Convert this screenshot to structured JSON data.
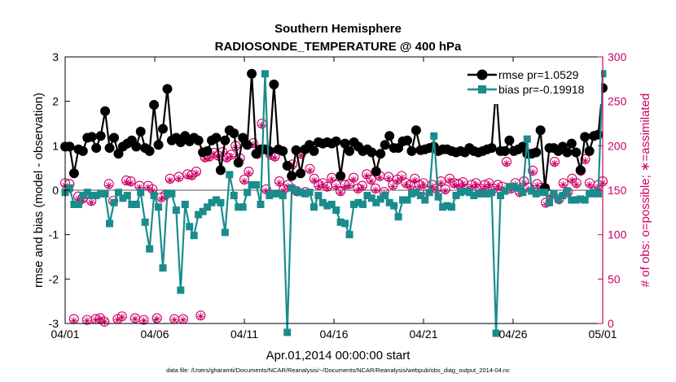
{
  "chart_data": {
    "type": "line",
    "title": "Southern Hemisphere",
    "subtitle": "RADIOSONDE_TEMPERATURE @ 400 hPa",
    "xlabel": "Apr.01,2014 00:00:00 start",
    "ylabel": "rmse and bias (model - observation)",
    "y2label": "# of obs: o=possible; ∗=assimilated",
    "footnote": "data file: /Users/gharamti/Documents/NCAR/Reanalysis/~/Documents/NCAR/Reanalysis/webpub/obs_diag_output_2014-04.nc",
    "xlim": [
      0,
      30
    ],
    "ylim": [
      -3,
      3
    ],
    "y2lim": [
      0,
      300
    ],
    "xticks": [
      0,
      5,
      10,
      15,
      20,
      25,
      30
    ],
    "xtick_labels": [
      "04/01",
      "04/06",
      "04/11",
      "04/16",
      "04/21",
      "04/26",
      "05/01"
    ],
    "yticks": [
      -3,
      -2,
      -1,
      0,
      1,
      2,
      3
    ],
    "ytick_labels": [
      "-3",
      "-2",
      "-1",
      "0",
      "1",
      "2",
      "3"
    ],
    "y2ticks": [
      0,
      50,
      100,
      150,
      200,
      250,
      300
    ],
    "y2tick_labels": [
      "0",
      "50",
      "100",
      "150",
      "200",
      "250",
      "300"
    ],
    "legend_position": "top-right",
    "colors": {
      "rmse": "#000000",
      "bias": "#1a8c8c",
      "obs": "#cc0066",
      "zero_line": "#aaaaaa"
    },
    "series": [
      {
        "name": "rmse pr=1.0529",
        "axis": "left",
        "values": [
          0.98,
          0.98,
          0.38,
          0.92,
          0.88,
          1.18,
          1.2,
          0.95,
          1.22,
          1.78,
          0.95,
          1.18,
          0.82,
          0.98,
          1.05,
          1.12,
          0.98,
          1.32,
          0.95,
          0.88,
          1.92,
          1.02,
          1.38,
          2.28,
          1.12,
          1.18,
          1.08,
          1.22,
          1.1,
          1.18,
          1.12,
          0.85,
          0.88,
          1.12,
          1.18,
          0.45,
          1.12,
          1.35,
          1.28,
          0.62,
          1.18,
          1.02,
          2.62,
          0.82,
          0.92,
          0.92,
          0.88,
          2.38,
          0.92,
          0.88,
          0.55,
          0.32,
          0.9,
          0.38,
          0.92,
          1.02,
          0.88,
          1.08,
          1.05,
          1.08,
          1.05,
          1.1,
          0.32,
          1.05,
          0.88,
          1.08,
          0.98,
          0.88,
          0.92,
          0.85,
          0.42,
          0.82,
          1.02,
          1.22,
          0.95,
          0.95,
          1.1,
          1.12,
          0.88,
          1.35,
          0.9,
          0.92,
          0.95,
          0.98,
          0.88,
          0.92,
          0.92,
          0.88,
          0.85,
          0.88,
          0.85,
          0.95,
          0.88,
          0.85,
          0.88,
          0.92,
          0.95,
          2.3,
          0.88,
          0.88,
          1.12,
          0.88,
          0.92,
          0.98,
          0.82,
          0.82,
          0.85,
          1.35,
          0.05,
          0.95,
          0.95,
          0.88,
          0.98,
          0.85,
          1.05,
          0.85,
          0.45,
          1.2,
          0.88,
          1.22,
          1.25,
          2.3
        ]
      },
      {
        "name": "bias pr=-0.19918",
        "axis": "left",
        "values": [
          -0.05,
          0.05,
          -0.32,
          -0.32,
          -0.12,
          -0.05,
          -0.12,
          -0.12,
          -0.08,
          -0.08,
          -0.75,
          -0.28,
          -0.05,
          -0.18,
          -0.12,
          -0.32,
          -0.32,
          -0.05,
          -0.72,
          -1.32,
          -0.12,
          -0.38,
          -1.75,
          -0.08,
          -0.08,
          -0.45,
          -2.25,
          -0.32,
          -0.82,
          -1.02,
          -0.55,
          -0.48,
          -0.38,
          -0.28,
          -0.22,
          -0.28,
          -0.95,
          0.35,
          -0.12,
          -0.38,
          -0.38,
          -0.05,
          0.12,
          0.12,
          -0.32,
          2.62,
          -0.12,
          -0.08,
          -0.08,
          -0.12,
          -3.2,
          0.05,
          -0.02,
          -0.05,
          -0.08,
          -0.05,
          -0.38,
          -0.12,
          -0.28,
          -0.35,
          -0.32,
          -0.45,
          -0.72,
          -0.75,
          -1.0,
          -0.32,
          -0.28,
          -0.32,
          -0.12,
          -0.18,
          -0.28,
          -0.2,
          -0.12,
          -0.28,
          -0.35,
          -0.6,
          -0.22,
          -0.22,
          -0.08,
          -0.05,
          -0.12,
          -0.22,
          -0.05,
          1.22,
          -0.15,
          -0.38,
          -0.35,
          -0.38,
          -0.12,
          -0.05,
          -0.02,
          -0.05,
          -0.12,
          -0.08,
          -0.08,
          -0.08,
          -0.05,
          -3.22,
          -0.12,
          -0.02,
          0.08,
          0.08,
          0.05,
          -0.05,
          1.15,
          -0.02,
          -0.08,
          -0.05,
          -0.05,
          -0.28,
          -0.08,
          -0.2,
          -0.12,
          -0.02,
          -0.22,
          -0.22,
          -0.2,
          -0.22,
          -0.08,
          -0.05,
          -0.08,
          2.62
        ]
      },
      {
        "name": "possible",
        "axis": "right",
        "values": [
          158,
          157,
          5,
          143,
          141,
          4,
          138,
          5,
          6,
          2,
          157,
          138,
          5,
          8,
          161,
          160,
          6,
          155,
          4,
          155,
          151,
          6,
          142,
          145,
          163,
          5,
          165,
          5,
          168,
          167,
          171,
          9,
          187,
          188,
          192,
          189,
          193,
          187,
          190,
          200,
          186,
          162,
          171,
          203,
          191,
          225,
          151,
          190,
          188,
          160,
          151,
          156,
          179,
          149,
          191,
          148,
          174,
          163,
          156,
          158,
          154,
          164,
          156,
          149,
          156,
          157,
          164,
          152,
          155,
          168,
          162,
          152,
          166,
          148,
          165,
          156,
          162,
          166,
          158,
          156,
          163,
          156,
          158,
          149,
          156,
          152,
          160,
          151,
          163,
          158,
          157,
          159,
          152,
          156,
          158,
          152,
          156,
          158,
          152,
          156,
          154,
          182,
          152,
          158,
          148,
          160,
          153,
          172,
          157,
          153,
          136,
          145,
          182,
          140,
          158,
          148,
          163,
          158,
          172,
          185,
          158,
          148,
          156,
          160
        ]
      },
      {
        "name": "assimilated",
        "axis": "right",
        "values": [
          155,
          151,
          3,
          140,
          138,
          3,
          136,
          4,
          5,
          2,
          155,
          136,
          4,
          7,
          159,
          158,
          5,
          153,
          3,
          153,
          149,
          5,
          140,
          143,
          161,
          4,
          163,
          4,
          166,
          165,
          169,
          8,
          185,
          186,
          190,
          187,
          191,
          185,
          188,
          198,
          184,
          160,
          169,
          201,
          189,
          223,
          149,
          188,
          186,
          158,
          149,
          154,
          177,
          147,
          189,
          146,
          172,
          161,
          154,
          156,
          152,
          162,
          154,
          147,
          154,
          155,
          162,
          150,
          153,
          166,
          160,
          150,
          164,
          146,
          163,
          154,
          160,
          164,
          156,
          154,
          161,
          154,
          156,
          147,
          154,
          150,
          158,
          149,
          161,
          156,
          155,
          157,
          150,
          154,
          156,
          150,
          154,
          156,
          150,
          154,
          152,
          180,
          150,
          156,
          146,
          158,
          151,
          170,
          155,
          151,
          134,
          143,
          180,
          138,
          156,
          146,
          161,
          156,
          170,
          183,
          156,
          146,
          154,
          158
        ]
      }
    ]
  }
}
